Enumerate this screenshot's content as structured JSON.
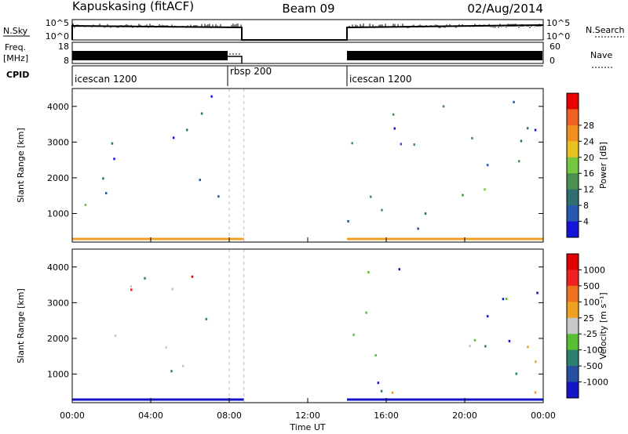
{
  "header": {
    "station": "Kapuskasing (fitACF)",
    "beam": "Beam 09",
    "date": "02/Aug/2014"
  },
  "panels": {
    "nsky_label": "N.Sky",
    "nsky_ticks": [
      "10^5",
      "10^0"
    ],
    "nsearch_label": "N.Search",
    "nsearch_ticks": [
      "10^5",
      "10^0"
    ],
    "freq_label": "Freq.",
    "freq_unit": "[MHz]",
    "freq_ticks": [
      "18",
      "8"
    ],
    "nave_label": "Nave",
    "nave_ticks": [
      "60",
      "0"
    ],
    "cpid_label": "CPID",
    "cpid_segments": [
      {
        "name": "icescan 1200",
        "start": 0,
        "end": 8.0
      },
      {
        "name": "rbsp 200",
        "start": 8.0,
        "end": 14.0
      },
      {
        "name": "icescan 1200",
        "start": 14.0,
        "end": 24.0
      }
    ]
  },
  "chart_data": [
    {
      "type": "heatmap",
      "name": "power",
      "ylabel": "Slant Range [km]",
      "xlabel": "",
      "y_ticks": [
        "1000",
        "2000",
        "3000",
        "4000"
      ],
      "ylim": [
        200,
        4500
      ],
      "xlim": [
        0,
        24
      ],
      "data_gap": [
        8.75,
        14.0
      ],
      "colorbar": {
        "label": "Power [dB]",
        "ticks": [
          "4",
          "8",
          "12",
          "16",
          "20",
          "24",
          "28"
        ],
        "colors": [
          "#1414d8",
          "#2858b0",
          "#2e7070",
          "#4a9050",
          "#74c840",
          "#e8c020",
          "#f09020",
          "#f06020",
          "#e80000"
        ]
      }
    },
    {
      "type": "heatmap",
      "name": "velocity",
      "ylabel": "Slant Range [km]",
      "xlabel": "Time UT",
      "x_ticks": [
        "00:00",
        "04:00",
        "08:00",
        "12:00",
        "16:00",
        "20:00",
        "00:00"
      ],
      "y_ticks": [
        "1000",
        "2000",
        "3000",
        "4000"
      ],
      "ylim": [
        200,
        4500
      ],
      "xlim": [
        0,
        24
      ],
      "data_gap": [
        8.75,
        14.0
      ],
      "colorbar": {
        "label": "Velocity [m s⁻¹]",
        "ticks": [
          "1000",
          "500",
          "100",
          "25",
          "-25",
          "-100",
          "-500",
          "-1000"
        ],
        "colors": [
          "#1414c8",
          "#2850a0",
          "#2a8070",
          "#58c030",
          "#c8c8c8",
          "#f0a020",
          "#f07020",
          "#f02020",
          "#e00000"
        ]
      }
    }
  ]
}
